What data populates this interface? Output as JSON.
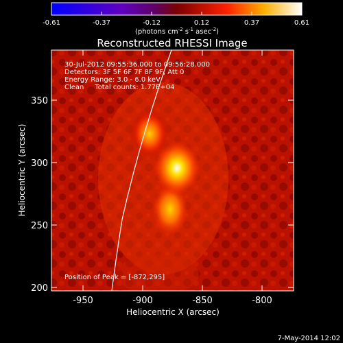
{
  "colorbar": {
    "ticks": [
      "-0.61",
      "-0.37",
      "-0.12",
      "0.12",
      "0.37",
      "0.61"
    ],
    "unit_main": "(photons cm",
    "unit_sup1": "-2",
    "unit_mid": " s",
    "unit_sup2": "-1",
    "unit_mid2": " asec",
    "unit_sup3": "-2",
    "unit_end": ")"
  },
  "title": "Reconstructed RHESSI Image",
  "info": {
    "time_range": "30-Jul-2012 09:55:36.000 to 09:56:28.000",
    "detectors": "Detectors: 3F 5F 6F 7F 8F 9F, Att 0",
    "energy": "Energy Range: 3.0 - 6.0 keV",
    "clean": "Clean     Total counts: 1.77E+04"
  },
  "peak_label": "Position of Peak = [-872,295]",
  "axes": {
    "xlabel": "Heliocentric X (arcsec)",
    "ylabel": "Heliocentric Y (arcsec)",
    "x_ticks": [
      "-950",
      "-900",
      "-850",
      "-800"
    ],
    "y_ticks": [
      "350",
      "300",
      "250",
      "200"
    ]
  },
  "footer_date": "7-May-2014 12:02"
}
